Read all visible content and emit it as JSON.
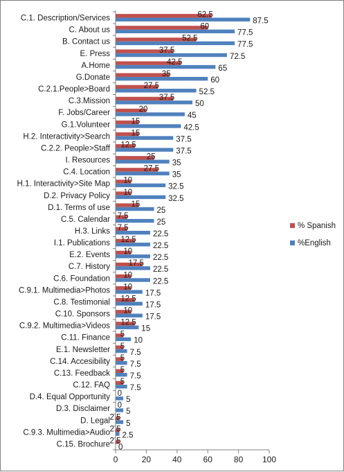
{
  "chart_data": {
    "type": "bar",
    "orientation": "horizontal",
    "categories": [
      "C.1. Description/Services",
      "C. About us",
      "B. Contact us",
      "E. Press",
      "A.Home",
      "G.Donate",
      "C.2.1.People>Board",
      "C.3.Mission",
      "F. Jobs/Career",
      "G.1.Volunteer",
      "H.2. Interactivity>Search",
      "C.2.2. People>Staff",
      "I. Resources",
      "C.4. Location",
      "H.1. Interactivity>Site Map",
      "D.2. Privacy Policy",
      "D.1. Terms of use",
      "C.5. Calendar",
      "H.3. Links",
      "I.1. Publications",
      "E.2. Events",
      "C.7. History",
      "C.6. Foundation",
      "C.9.1. Multimedia>Photos",
      "C.8. Testimonial",
      "C.10. Sponsors",
      "C.9.2. Multimedia>Videos",
      "C.11. Finance",
      "E.1. Newsletter",
      "C.14. Accesibility",
      "C.13. Feedback",
      "C.12. FAQ",
      "D.4. Equal Opportunity",
      "D.3. Disclaimer",
      "D. Legal",
      "C.9.3. Multimedia>Audio",
      "C.15. Brochure"
    ],
    "series": [
      {
        "name": "% Spanish",
        "color": "#c0504d",
        "values": [
          62.5,
          60,
          52.5,
          37.5,
          42.5,
          35,
          27.5,
          37.5,
          20,
          15,
          15,
          12.5,
          25,
          27.5,
          10,
          10,
          15,
          7.5,
          7.5,
          12.5,
          10,
          17.5,
          10,
          10,
          12.5,
          10,
          12.5,
          5,
          5,
          5,
          5,
          5,
          0,
          0,
          2.5,
          2.5,
          2.5
        ]
      },
      {
        "name": "%English",
        "color": "#4f81bd",
        "values": [
          87.5,
          77.5,
          77.5,
          72.5,
          65,
          60,
          52.5,
          50,
          45,
          42.5,
          37.5,
          37.5,
          35,
          35,
          32.5,
          32.5,
          25,
          25,
          22.5,
          22.5,
          22.5,
          22.5,
          22.5,
          17.5,
          17.5,
          17.5,
          15,
          10,
          7.5,
          7.5,
          7.5,
          7.5,
          5,
          5,
          5,
          2.5,
          0
        ]
      }
    ],
    "xlim": [
      0,
      100
    ],
    "xticks": [
      0,
      20,
      40,
      60,
      80,
      100
    ],
    "grid": false,
    "legend_position": "right"
  }
}
